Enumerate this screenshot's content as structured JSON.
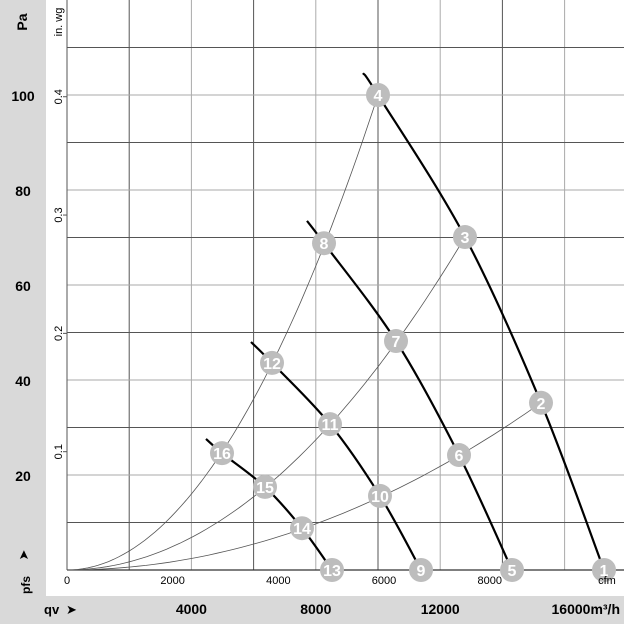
{
  "chart_data": {
    "type": "line",
    "y_unit_primary": "Pa",
    "y_unit_secondary": "in. wg",
    "y_axis_symbol": "pfs",
    "x_axis_symbol": "qv",
    "x_unit_primary": "m³/h",
    "x_unit_secondary": "cfm",
    "xlim_m3h": [
      0,
      17900
    ],
    "ylim_pa": [
      0,
      120
    ],
    "grid": true,
    "pa_ticks": [
      "20",
      "40",
      "60",
      "80",
      "100"
    ],
    "inwg_ticks": [
      "0.1",
      "0.2",
      "0.3",
      "0.4"
    ],
    "m3h_ticks": [
      "4000",
      "8000",
      "12000",
      "16000m³/h"
    ],
    "cfm_ticks": [
      "0",
      "2000",
      "4000",
      "6000",
      "8000",
      "cfm"
    ],
    "fan_curves": [
      {
        "points": [
          [
            9518,
            104.6
          ],
          [
            10000,
            100
          ],
          [
            12797,
            70.1
          ],
          [
            15241,
            35.2
          ],
          [
            17267,
            0
          ]
        ]
      },
      {
        "points": [
          [
            7717,
            73.5
          ],
          [
            8264,
            68.8
          ],
          [
            10579,
            48.2
          ],
          [
            12605,
            24.2
          ],
          [
            14309,
            0
          ]
        ]
      },
      {
        "points": [
          [
            5916,
            48
          ],
          [
            6592,
            43.6
          ],
          [
            8457,
            30.7
          ],
          [
            10064,
            15.6
          ],
          [
            11383,
            0
          ]
        ]
      },
      {
        "points": [
          [
            4469,
            27.6
          ],
          [
            4984,
            24.6
          ],
          [
            6367,
            17.5
          ],
          [
            7556,
            8.8
          ],
          [
            8521,
            0
          ]
        ]
      }
    ],
    "system_curves": [
      {
        "through": [
          "16",
          "12",
          "8",
          "4"
        ]
      },
      {
        "through": [
          "15",
          "11",
          "7",
          "3"
        ]
      },
      {
        "through": [
          "14",
          "10",
          "6",
          "2"
        ]
      }
    ],
    "operating_points": [
      {
        "label": "1",
        "q": 17267,
        "p": 0
      },
      {
        "label": "2",
        "q": 15241,
        "p": 35.2
      },
      {
        "label": "3",
        "q": 12797,
        "p": 70.1
      },
      {
        "label": "4",
        "q": 10000,
        "p": 100
      },
      {
        "label": "5",
        "q": 14309,
        "p": 0
      },
      {
        "label": "6",
        "q": 12605,
        "p": 24.2
      },
      {
        "label": "7",
        "q": 10579,
        "p": 48.2
      },
      {
        "label": "8",
        "q": 8264,
        "p": 68.8
      },
      {
        "label": "9",
        "q": 11383,
        "p": 0
      },
      {
        "label": "10",
        "q": 10064,
        "p": 15.6
      },
      {
        "label": "11",
        "q": 8457,
        "p": 30.7
      },
      {
        "label": "12",
        "q": 6592,
        "p": 43.6
      },
      {
        "label": "13",
        "q": 8521,
        "p": 0
      },
      {
        "label": "14",
        "q": 7556,
        "p": 8.8
      },
      {
        "label": "15",
        "q": 6367,
        "p": 17.5
      },
      {
        "label": "16",
        "q": 4984,
        "p": 24.6
      }
    ],
    "colors": {
      "strip": "#d9d9d9",
      "marker": "#bdbdbd",
      "marker_text": "#ffffff",
      "fan_curve": "#000000",
      "system_curve": "#555555"
    }
  }
}
